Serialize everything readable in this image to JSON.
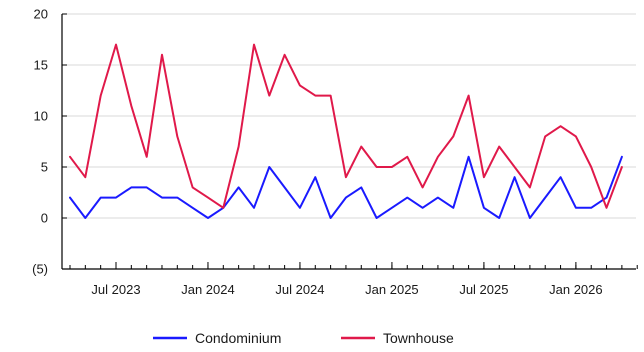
{
  "chart_data": {
    "type": "line",
    "title": "",
    "xlabel": "",
    "ylabel": "",
    "ylim": [
      -5,
      20
    ],
    "y_ticks": [
      -5,
      0,
      5,
      10,
      15,
      20
    ],
    "y_tick_labels": [
      "(5)",
      "0",
      "5",
      "10",
      "15",
      "20"
    ],
    "x_ticks": [
      {
        "date": "2023-07",
        "label": "Jul 2023"
      },
      {
        "date": "2024-01",
        "label": "Jan 2024"
      },
      {
        "date": "2024-07",
        "label": "Jul 2024"
      },
      {
        "date": "2025-01",
        "label": "Jan 2025"
      },
      {
        "date": "2025-07",
        "label": "Jul 2025"
      },
      {
        "date": "2026-01",
        "label": "Jan 2026"
      }
    ],
    "x": [
      "2023-04",
      "2023-05",
      "2023-06",
      "2023-07",
      "2023-08",
      "2023-09",
      "2023-10",
      "2023-11",
      "2023-12",
      "2024-01",
      "2024-02",
      "2024-03",
      "2024-04",
      "2024-05",
      "2024-06",
      "2024-07",
      "2024-08",
      "2024-09",
      "2024-10",
      "2024-11",
      "2024-12",
      "2025-01",
      "2025-02",
      "2025-03",
      "2025-04",
      "2025-05",
      "2025-06",
      "2025-07",
      "2025-08",
      "2025-09",
      "2025-10",
      "2025-11",
      "2025-12",
      "2026-01",
      "2026-02",
      "2026-03",
      "2026-04",
      "2026-05"
    ],
    "grid": true,
    "legend_position": "bottom",
    "series": [
      {
        "name": "Condominium",
        "color": "#1a1aff",
        "values": [
          2,
          0,
          2,
          2,
          3,
          3,
          2,
          2,
          1,
          0,
          1,
          3,
          1,
          5,
          3,
          1,
          4,
          0,
          2,
          3,
          0,
          1,
          2,
          1,
          2,
          1,
          6,
          1,
          0,
          4,
          0,
          2,
          4,
          1,
          1,
          2,
          6,
          null
        ]
      },
      {
        "name": "Townhouse",
        "color": "#e0194a",
        "values": [
          6,
          4,
          12,
          17,
          11,
          6,
          16,
          8,
          3,
          2,
          1,
          7,
          17,
          12,
          16,
          13,
          12,
          12,
          4,
          7,
          5,
          5,
          6,
          3,
          6,
          8,
          12,
          4,
          7,
          5,
          3,
          8,
          9,
          8,
          5,
          1,
          5,
          null
        ]
      }
    ]
  }
}
